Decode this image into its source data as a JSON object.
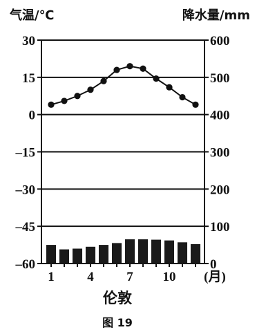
{
  "chart_data": {
    "type": "climate",
    "title": "伦敦",
    "caption": "图 19",
    "month_label": "(月)",
    "categories": [
      1,
      2,
      3,
      4,
      5,
      6,
      7,
      8,
      9,
      10,
      11,
      12
    ],
    "x_tick_labels": [
      "1",
      "4",
      "7",
      "10"
    ],
    "x_tick_months": [
      1,
      4,
      7,
      10
    ],
    "temperature": {
      "axis_label": "气温/℃",
      "ticks": [
        30,
        15,
        0,
        -15,
        -30,
        -45,
        -60
      ],
      "tick_labels": [
        "30",
        "15",
        "0",
        "–15",
        "–30",
        "–45",
        "–60"
      ],
      "ylim": [
        -60,
        30
      ],
      "values": [
        4,
        5.5,
        7.5,
        10,
        13.5,
        18,
        19.5,
        18.5,
        14.5,
        11,
        7,
        4
      ],
      "type": "line"
    },
    "precipitation": {
      "axis_label": "降水量/mm",
      "ticks": [
        600,
        500,
        400,
        300,
        200,
        100,
        0
      ],
      "tick_labels": [
        "600",
        "500",
        "400",
        "300",
        "200",
        "100",
        "0"
      ],
      "ylim": [
        0,
        600
      ],
      "values": [
        50,
        38,
        40,
        45,
        50,
        55,
        65,
        65,
        64,
        62,
        57,
        52
      ],
      "type": "bar"
    },
    "grid": true,
    "colors": {
      "ink": "#111111",
      "bar": "#1a1a1a"
    }
  }
}
